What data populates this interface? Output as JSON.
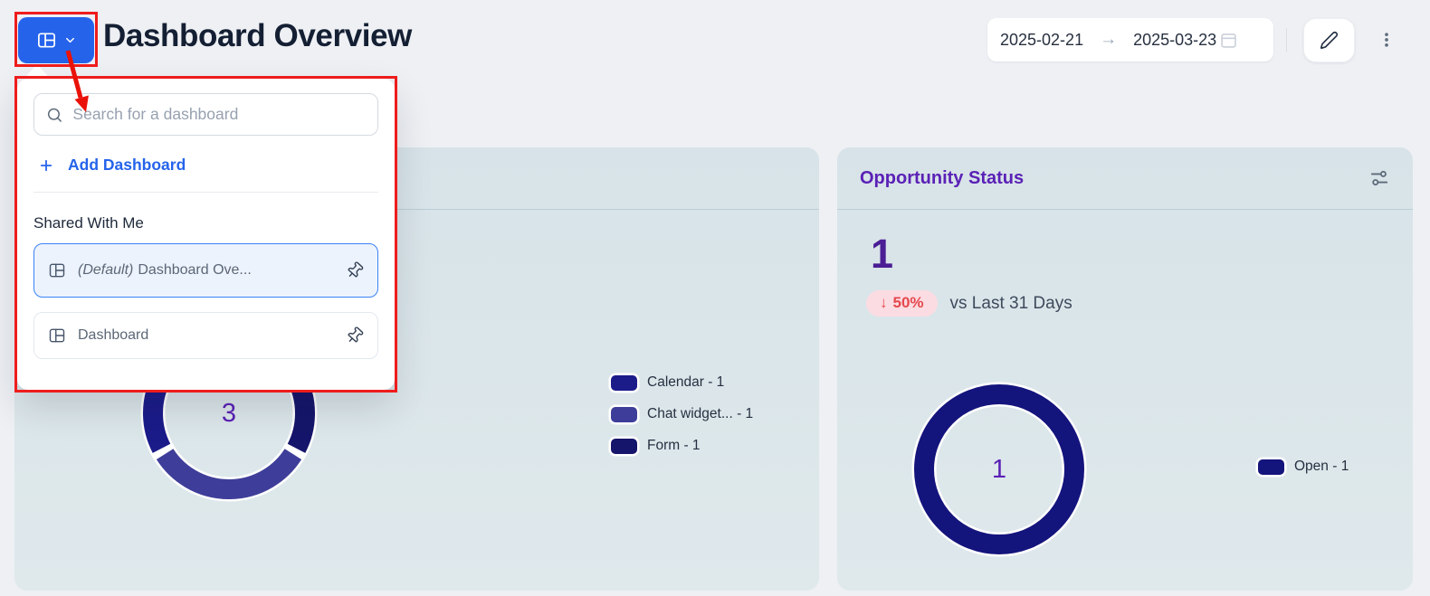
{
  "header": {
    "title": "Dashboard Overview",
    "date_range": {
      "start": "2025-02-21",
      "separator": "→",
      "end": "2025-03-23"
    }
  },
  "dropdown": {
    "search_placeholder": "Search for a dashboard",
    "add_dashboard_label": "Add Dashboard",
    "section_title": "Shared With Me",
    "items": [
      {
        "prefix": "(Default)",
        "label": "Dashboard Ove...",
        "selected": true,
        "pinned": true
      },
      {
        "prefix": "",
        "label": "Dashboard",
        "selected": false,
        "pinned": true
      }
    ]
  },
  "chart_data": [
    {
      "type": "pie",
      "variant": "donut",
      "center_label": "3",
      "clockwise": false,
      "series": [
        {
          "name": "Calendar",
          "value": 1
        },
        {
          "name": "Chat widget...",
          "value": 1
        },
        {
          "name": "Form",
          "value": 1
        }
      ],
      "colors": [
        "#1b1b8a",
        "#3e3e9a",
        "#15156b"
      ],
      "legend": [
        "Calendar - 1",
        "Chat widget... - 1",
        "Form - 1"
      ],
      "legend_position": "right"
    },
    {
      "type": "pie",
      "variant": "donut",
      "title": "Opportunity Status",
      "center_label": "1",
      "kpi": {
        "value": "1",
        "delta_arrow": "↓",
        "delta": "50%",
        "comparison": "vs Last 31 Days"
      },
      "series": [
        {
          "name": "Open",
          "value": 1
        }
      ],
      "colors": [
        "#14147d"
      ],
      "legend": [
        "Open - 1"
      ],
      "legend_position": "right"
    }
  ],
  "colors": {
    "accent_blue": "#2563eb",
    "annotation_red": "#ee1c1c",
    "title_purple": "#5b21b6",
    "kpi_purple": "#4b1e95",
    "badge_bg": "#fbdce2",
    "badge_text": "#e5484d",
    "card_bg": "#dce6ea",
    "donut_navy": "#14147d"
  }
}
